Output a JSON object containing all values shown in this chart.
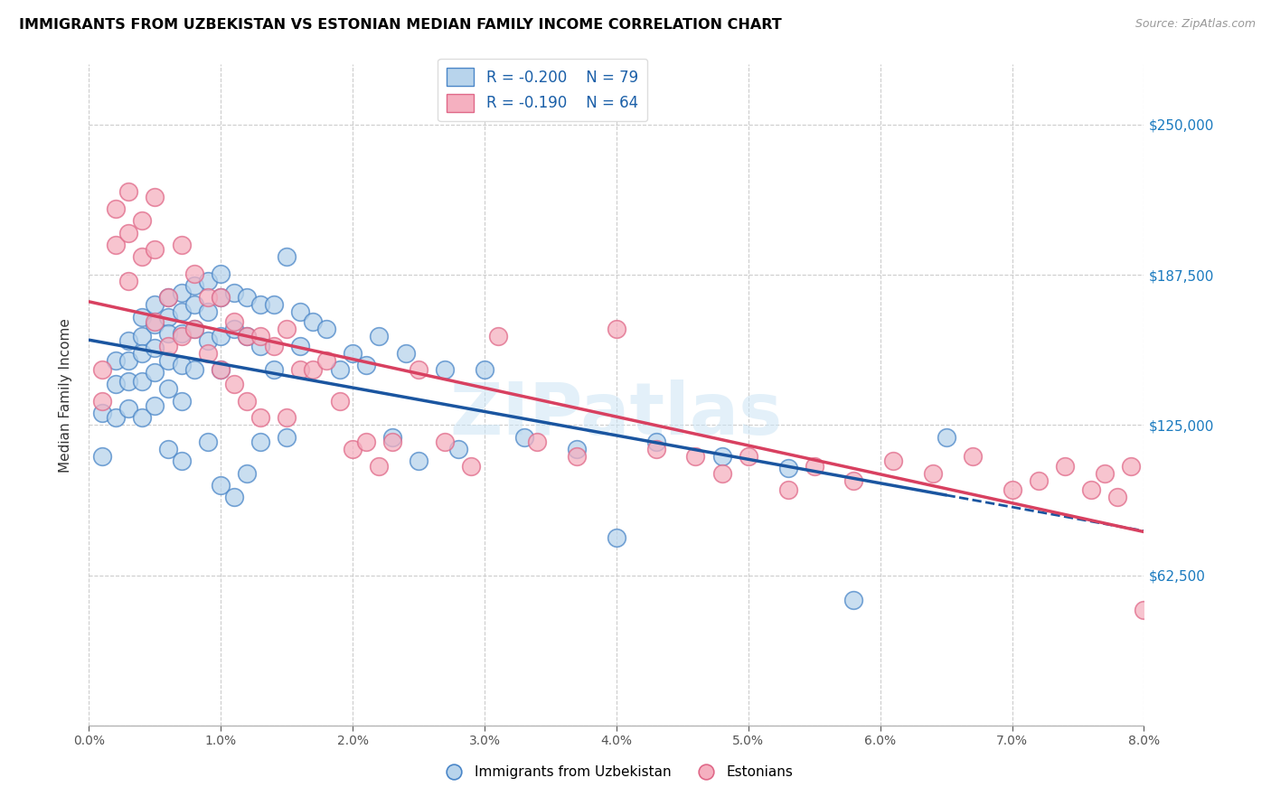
{
  "title": "IMMIGRANTS FROM UZBEKISTAN VS ESTONIAN MEDIAN FAMILY INCOME CORRELATION CHART",
  "source": "Source: ZipAtlas.com",
  "ylabel": "Median Family Income",
  "yticks": [
    0,
    62500,
    125000,
    187500,
    250000
  ],
  "xmin": 0.0,
  "xmax": 0.08,
  "ymin": 0,
  "ymax": 275000,
  "legend_r_blue": "R = -0.200",
  "legend_n_blue": "N = 79",
  "legend_r_pink": "R = -0.190",
  "legend_n_pink": "N = 64",
  "legend_label_blue": "Immigrants from Uzbekistan",
  "legend_label_pink": "Estonians",
  "blue_face": "#b8d4ec",
  "pink_face": "#f5b0c0",
  "blue_edge": "#4a86c8",
  "pink_edge": "#e06888",
  "line_blue": "#1a55a0",
  "line_pink": "#d84060",
  "watermark": "ZIPatlas",
  "blue_x": [
    0.001,
    0.001,
    0.002,
    0.002,
    0.002,
    0.003,
    0.003,
    0.003,
    0.003,
    0.004,
    0.004,
    0.004,
    0.004,
    0.004,
    0.005,
    0.005,
    0.005,
    0.005,
    0.005,
    0.006,
    0.006,
    0.006,
    0.006,
    0.006,
    0.006,
    0.007,
    0.007,
    0.007,
    0.007,
    0.007,
    0.007,
    0.008,
    0.008,
    0.008,
    0.008,
    0.009,
    0.009,
    0.009,
    0.009,
    0.01,
    0.01,
    0.01,
    0.01,
    0.01,
    0.011,
    0.011,
    0.011,
    0.012,
    0.012,
    0.012,
    0.013,
    0.013,
    0.013,
    0.014,
    0.014,
    0.015,
    0.015,
    0.016,
    0.016,
    0.017,
    0.018,
    0.019,
    0.02,
    0.021,
    0.022,
    0.023,
    0.024,
    0.025,
    0.027,
    0.028,
    0.03,
    0.033,
    0.037,
    0.04,
    0.043,
    0.048,
    0.053,
    0.058,
    0.065
  ],
  "blue_y": [
    130000,
    112000,
    152000,
    142000,
    128000,
    160000,
    152000,
    143000,
    132000,
    170000,
    162000,
    155000,
    143000,
    128000,
    175000,
    167000,
    157000,
    147000,
    133000,
    178000,
    170000,
    163000,
    152000,
    140000,
    115000,
    180000,
    172000,
    163000,
    150000,
    135000,
    110000,
    183000,
    175000,
    165000,
    148000,
    185000,
    172000,
    160000,
    118000,
    188000,
    178000,
    162000,
    148000,
    100000,
    180000,
    165000,
    95000,
    178000,
    162000,
    105000,
    175000,
    158000,
    118000,
    175000,
    148000,
    195000,
    120000,
    172000,
    158000,
    168000,
    165000,
    148000,
    155000,
    150000,
    162000,
    120000,
    155000,
    110000,
    148000,
    115000,
    148000,
    120000,
    115000,
    78000,
    118000,
    112000,
    107000,
    52000,
    120000
  ],
  "pink_x": [
    0.001,
    0.001,
    0.002,
    0.002,
    0.003,
    0.003,
    0.003,
    0.004,
    0.004,
    0.005,
    0.005,
    0.005,
    0.006,
    0.006,
    0.007,
    0.007,
    0.008,
    0.008,
    0.009,
    0.009,
    0.01,
    0.01,
    0.011,
    0.011,
    0.012,
    0.012,
    0.013,
    0.013,
    0.014,
    0.015,
    0.015,
    0.016,
    0.017,
    0.018,
    0.019,
    0.02,
    0.021,
    0.022,
    0.023,
    0.025,
    0.027,
    0.029,
    0.031,
    0.034,
    0.037,
    0.04,
    0.043,
    0.046,
    0.048,
    0.05,
    0.053,
    0.055,
    0.058,
    0.061,
    0.064,
    0.067,
    0.07,
    0.072,
    0.074,
    0.076,
    0.077,
    0.078,
    0.079,
    0.08
  ],
  "pink_y": [
    148000,
    135000,
    215000,
    200000,
    222000,
    205000,
    185000,
    210000,
    195000,
    220000,
    198000,
    168000,
    178000,
    158000,
    200000,
    162000,
    188000,
    165000,
    178000,
    155000,
    178000,
    148000,
    168000,
    142000,
    162000,
    135000,
    162000,
    128000,
    158000,
    165000,
    128000,
    148000,
    148000,
    152000,
    135000,
    115000,
    118000,
    108000,
    118000,
    148000,
    118000,
    108000,
    162000,
    118000,
    112000,
    165000,
    115000,
    112000,
    105000,
    112000,
    98000,
    108000,
    102000,
    110000,
    105000,
    112000,
    98000,
    102000,
    108000,
    98000,
    105000,
    95000,
    108000,
    48000
  ]
}
